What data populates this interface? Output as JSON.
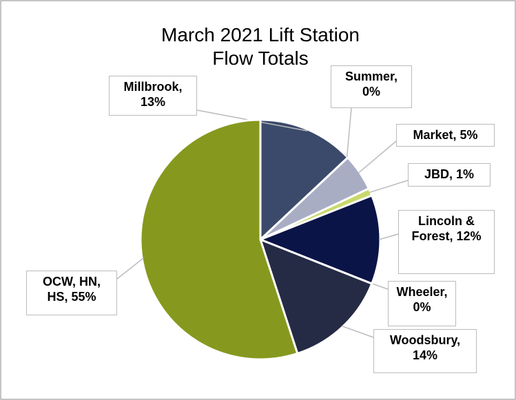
{
  "chart_data": {
    "type": "pie",
    "title": "March 2021 Lift Station Flow Totals",
    "categories": [
      "Millbrook",
      "Summer",
      "Market",
      "JBD",
      "Lincoln & Forest",
      "Wheeler",
      "Woodsbury",
      "OCW, HN, HS"
    ],
    "values": [
      13,
      0,
      5,
      1,
      12,
      0,
      14,
      55
    ],
    "value_labels": [
      "Millbrook, 13%",
      "Summer, 0%",
      "Market, 5%",
      "JBD, 1%",
      "Lincoln & Forest, 12%",
      "Wheeler, 0%",
      "Woodsbury, 14%",
      "OCW, HN, HS, 55%"
    ],
    "colors": [
      "#3b4a6b",
      "#6f7ea0",
      "#a9adc4",
      "#c9d86a",
      "#0a1446",
      "#5a6585",
      "#252a45",
      "#86991e"
    ]
  }
}
